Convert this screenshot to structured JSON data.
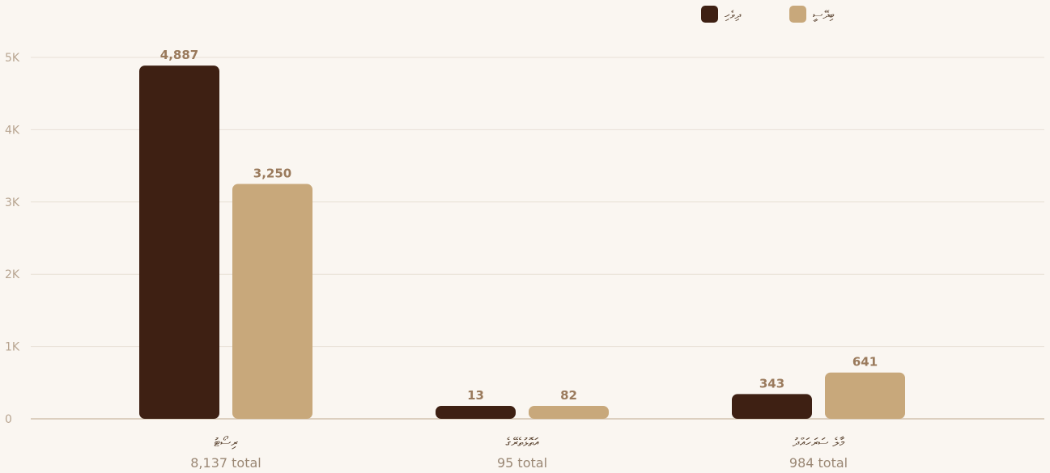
{
  "chart_data": {
    "type": "bar",
    "categories": [
      "ރިސޯޓު",
      "އަތޮޅުތެރޭގެ",
      "މާލެ ސަރަހައްދު"
    ],
    "category_totals": [
      "8,137 total",
      "95 total",
      "984 total"
    ],
    "series": [
      {
        "name": "ދިވެހި",
        "color": "#3e2013",
        "values": [
          4887,
          13,
          343
        ],
        "labels": [
          "4,887",
          "13",
          "343"
        ]
      },
      {
        "name": "ބިދޭސީ",
        "color": "#c8a87b",
        "values": [
          3250,
          82,
          641
        ],
        "labels": [
          "3,250",
          "82",
          "641"
        ]
      }
    ],
    "ylim": [
      0,
      5000
    ],
    "yticks": [
      0,
      1000,
      2000,
      3000,
      4000,
      5000
    ],
    "ytick_labels": [
      "0",
      "1K",
      "2K",
      "3K",
      "4K",
      "5K"
    ],
    "grid": true,
    "legend_position": "top-right",
    "title": "",
    "xlabel": "",
    "ylabel": ""
  }
}
